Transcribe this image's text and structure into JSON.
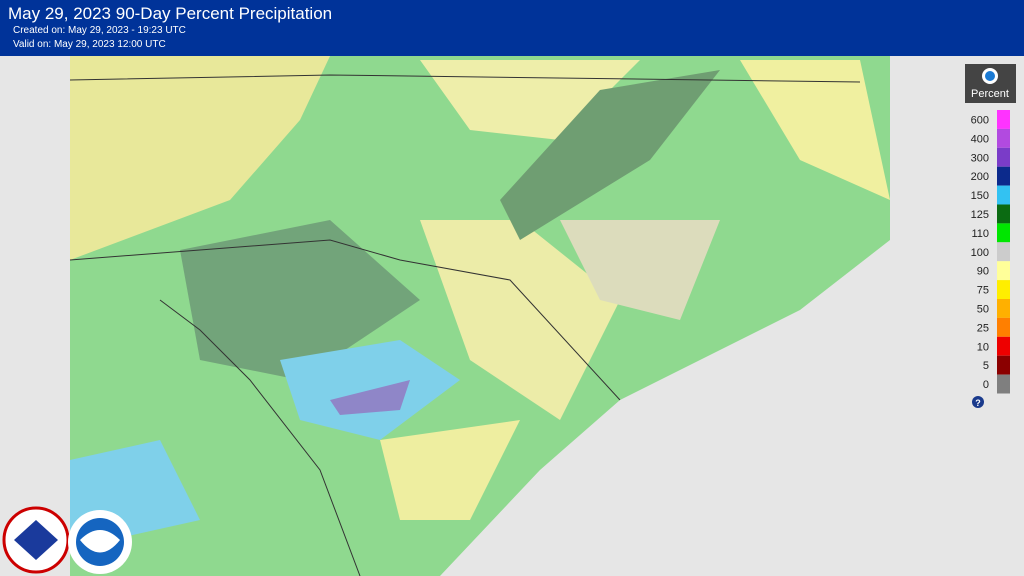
{
  "header": {
    "title": "May 29, 2023 90-Day Percent Precipitation",
    "created": "Created on: May 29, 2023 - 19:23 UTC",
    "valid": "Valid on: May 29, 2023 12:00 UTC"
  },
  "legend": {
    "title": "Percent",
    "items": [
      {
        "value": 600,
        "color": "#ff33ff"
      },
      {
        "value": 400,
        "color": "#b24ae0"
      },
      {
        "value": 300,
        "color": "#7a3cc8"
      },
      {
        "value": 200,
        "color": "#0c2a8c"
      },
      {
        "value": 150,
        "color": "#33c2f2"
      },
      {
        "value": 125,
        "color": "#0b6b12"
      },
      {
        "value": 110,
        "color": "#00e600"
      },
      {
        "value": 100,
        "color": "#cccccc"
      },
      {
        "value": 90,
        "color": "#ffff99"
      },
      {
        "value": 75,
        "color": "#ffee00"
      },
      {
        "value": 50,
        "color": "#ffb000"
      },
      {
        "value": 25,
        "color": "#ff7f00"
      },
      {
        "value": 10,
        "color": "#ee0000"
      },
      {
        "value": 5,
        "color": "#8b0000"
      },
      {
        "value": 0,
        "color": "#7f7f7f"
      }
    ]
  }
}
